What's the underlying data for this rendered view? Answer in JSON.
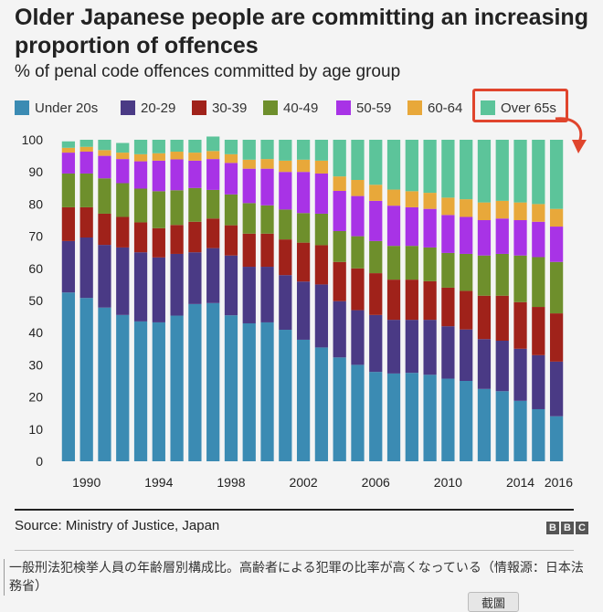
{
  "caption": {
    "text": "一般刑法犯検挙人員の年齢層別構成比。高齢者による犯罪の比率が高くなっている（情報源：日本法務省）",
    "button_label": "截圖"
  },
  "footer": {
    "source": "Source: Ministry of Justice, Japan",
    "logo_letters": [
      "B",
      "B",
      "C"
    ]
  },
  "icons": {
    "arrow": "curved-arrow-icon"
  },
  "chart_data": {
    "type": "bar",
    "stacked": true,
    "title": "Older Japanese people are committing an increasing proportion of offences",
    "subtitle": "% of penal code offences committed by age group",
    "ylim": [
      0,
      100
    ],
    "yticks": [
      0,
      10,
      20,
      30,
      40,
      50,
      60,
      70,
      80,
      90,
      100
    ],
    "x": [
      1989,
      1990,
      1991,
      1992,
      1993,
      1994,
      1995,
      1996,
      1997,
      1998,
      1999,
      2000,
      2001,
      2002,
      2003,
      2004,
      2005,
      2006,
      2007,
      2008,
      2009,
      2010,
      2011,
      2012,
      2013,
      2014,
      2015,
      2016
    ],
    "xtick_labels": [
      "1990",
      "1994",
      "1998",
      "2002",
      "2006",
      "2010",
      "2014",
      "2016"
    ],
    "xtick_years": [
      1990,
      1994,
      1998,
      2002,
      2006,
      2010,
      2014,
      2016
    ],
    "grid": false,
    "legend_position": "top",
    "highlighted_series": "Over 65s",
    "highlight_color": "#e0452d",
    "series": [
      {
        "name": "Under 20s",
        "color": "#3b8bb3",
        "values": [
          52.5,
          50.8,
          47.8,
          45.5,
          43.5,
          43.2,
          45.3,
          48.9,
          49.2,
          45.4,
          42.9,
          43.2,
          40.9,
          37.8,
          35.4,
          32.3,
          30.0,
          27.8,
          27.3,
          27.5,
          26.9,
          25.7,
          25.0,
          22.5,
          21.8,
          18.8,
          16.2,
          14.0
        ]
      },
      {
        "name": "20-29",
        "color": "#4a3a85",
        "values": [
          16.0,
          18.8,
          19.5,
          21.0,
          21.5,
          20.2,
          19.2,
          16.1,
          17.1,
          18.6,
          17.6,
          17.3,
          17.0,
          18.1,
          19.6,
          17.5,
          17.0,
          17.7,
          16.7,
          16.5,
          17.1,
          16.3,
          16.0,
          15.5,
          15.7,
          16.2,
          16.8,
          17.0
        ]
      },
      {
        "name": "30-39",
        "color": "#a0221a",
        "values": [
          10.5,
          9.4,
          9.7,
          9.5,
          9.3,
          9.1,
          9.0,
          9.5,
          9.2,
          9.4,
          10.3,
          10.3,
          11.1,
          12.1,
          12.2,
          12.2,
          13.0,
          13.0,
          12.5,
          12.5,
          12.0,
          12.0,
          12.0,
          13.5,
          14.0,
          14.5,
          15.0,
          15.0
        ]
      },
      {
        "name": "40-49",
        "color": "#6e8f2c",
        "values": [
          10.5,
          10.5,
          11.0,
          10.5,
          10.5,
          11.5,
          10.8,
          10.5,
          8.9,
          9.6,
          9.5,
          8.8,
          9.3,
          9.2,
          9.8,
          9.6,
          10.0,
          10.0,
          10.5,
          10.5,
          10.5,
          10.8,
          11.5,
          12.5,
          13.0,
          14.5,
          15.5,
          16.0
        ]
      },
      {
        "name": "50-59",
        "color": "#a833e6",
        "values": [
          6.5,
          6.8,
          7.0,
          7.5,
          8.5,
          9.5,
          9.6,
          8.5,
          9.6,
          9.8,
          10.7,
          11.4,
          11.7,
          12.8,
          12.5,
          12.5,
          12.5,
          12.5,
          12.5,
          12.0,
          12.0,
          11.8,
          11.5,
          11.0,
          11.0,
          11.0,
          11.0,
          11.0
        ]
      },
      {
        "name": "60-64",
        "color": "#e8a83a",
        "values": [
          1.5,
          1.5,
          1.8,
          2.0,
          2.2,
          2.3,
          2.4,
          2.5,
          2.5,
          2.7,
          2.8,
          3.0,
          3.5,
          3.8,
          4.0,
          4.5,
          5.0,
          5.0,
          5.0,
          5.0,
          5.0,
          5.4,
          5.5,
          5.5,
          5.5,
          5.5,
          5.5,
          5.5
        ]
      },
      {
        "name": "Over 65s",
        "color": "#5cc49a",
        "values": [
          2.0,
          2.2,
          3.2,
          3.0,
          4.5,
          4.2,
          3.7,
          4.0,
          4.5,
          4.5,
          6.2,
          6.0,
          6.5,
          6.2,
          6.5,
          11.4,
          12.5,
          14.0,
          15.5,
          16.0,
          16.5,
          18.0,
          18.5,
          19.5,
          19.0,
          19.5,
          20.0,
          21.5
        ]
      }
    ]
  }
}
